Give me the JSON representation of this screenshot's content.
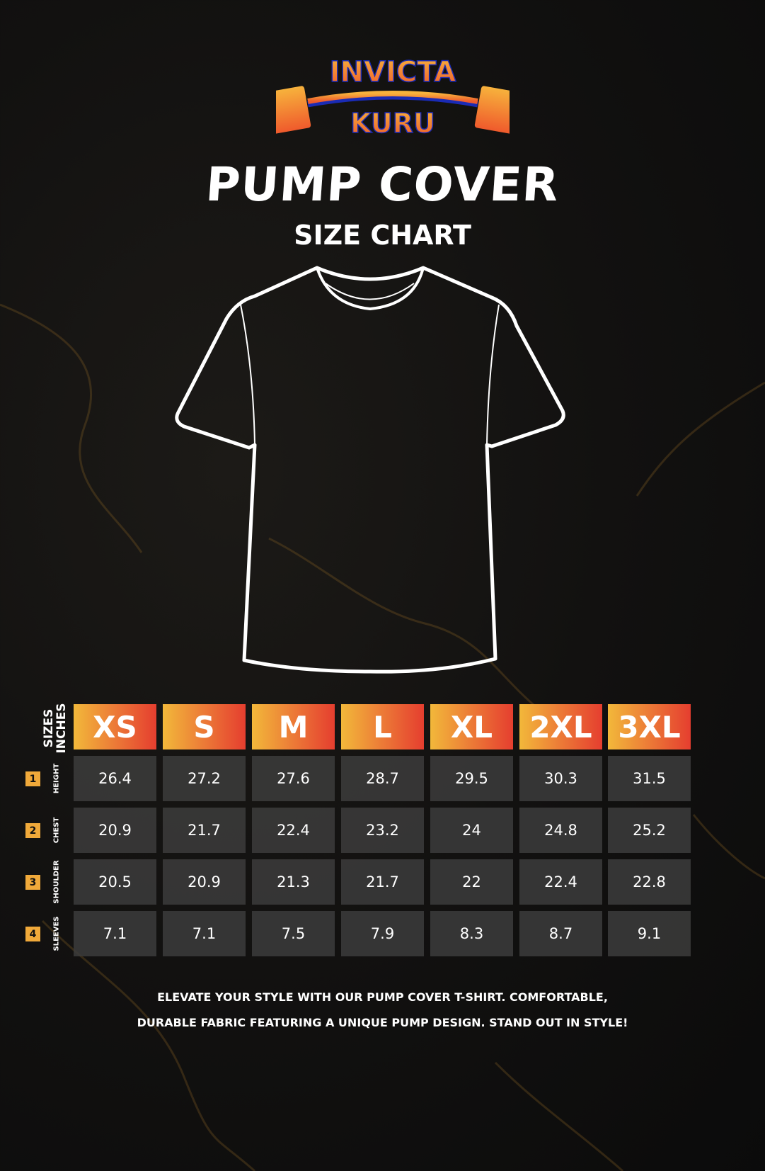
{
  "brand": {
    "logo_text": "INVICTA KURU",
    "colors": {
      "orange": "#f5a03a",
      "red": "#e53e2f",
      "blue": "#1a2bb5"
    }
  },
  "title": "PUMP COVER",
  "subtitle": "SIZE CHART",
  "table": {
    "corner": [
      "SIZES",
      "INCHES"
    ],
    "sizes": [
      "XS",
      "S",
      "M",
      "L",
      "XL",
      "2XL",
      "3XL"
    ],
    "rows": [
      {
        "num": "1",
        "label": "HEIGHT",
        "values": [
          "26.4",
          "27.2",
          "27.6",
          "28.7",
          "29.5",
          "30.3",
          "31.5"
        ]
      },
      {
        "num": "2",
        "label": "CHEST",
        "values": [
          "20.9",
          "21.7",
          "22.4",
          "23.2",
          "24",
          "24.8",
          "25.2"
        ]
      },
      {
        "num": "3",
        "label": "SHOULDER",
        "values": [
          "20.5",
          "20.9",
          "21.3",
          "21.7",
          "22",
          "22.4",
          "22.8"
        ]
      },
      {
        "num": "4",
        "label": "SLEEVES",
        "values": [
          "7.1",
          "7.1",
          "7.5",
          "7.9",
          "8.3",
          "8.7",
          "9.1"
        ]
      }
    ]
  },
  "footer": [
    "ELEVATE YOUR STYLE WITH OUR PUMP COVER T-SHIRT. COMFORTABLE,",
    "DURABLE FABRIC FEATURING A UNIQUE PUMP DESIGN. STAND OUT IN STYLE!"
  ]
}
